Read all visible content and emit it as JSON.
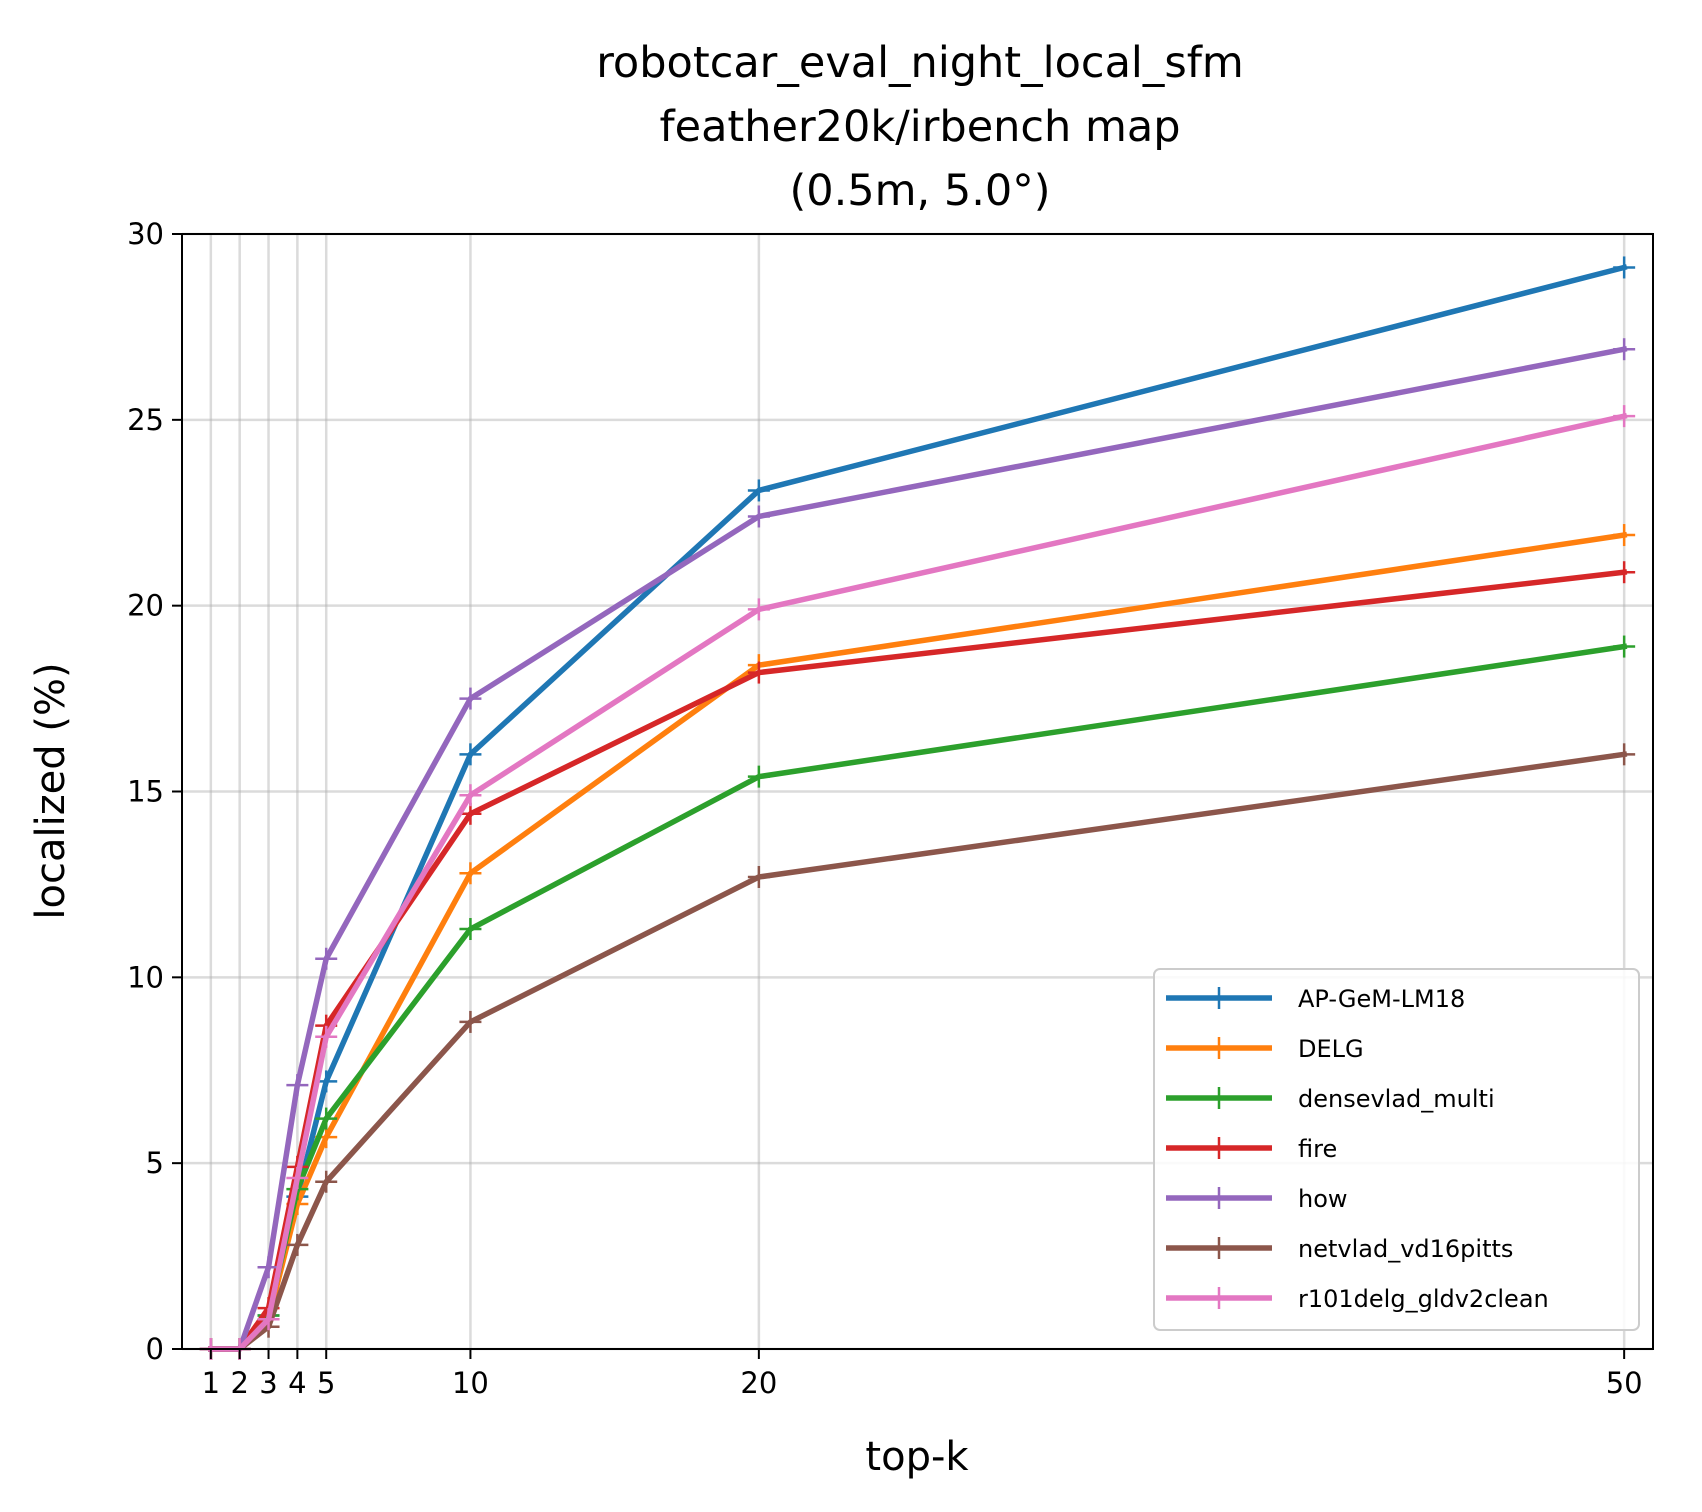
{
  "chart_data": {
    "type": "line",
    "title": [
      "robotcar_eval_night_local_sfm",
      "feather20k/irbench map",
      "(0.5m, 5.0°)"
    ],
    "xlabel": "top-k",
    "ylabel": "localized (%)",
    "x": [
      1,
      2,
      3,
      4,
      5,
      10,
      20,
      50
    ],
    "xticks": [
      "1",
      "2",
      "3",
      "4",
      "5",
      "10",
      "20",
      "50"
    ],
    "yticks": [
      "0",
      "5",
      "10",
      "15",
      "20",
      "25",
      "30"
    ],
    "xlim": [
      0,
      51
    ],
    "ylim": [
      0,
      30
    ],
    "grid": true,
    "legend_position": "lower right",
    "series": [
      {
        "name": "AP-GeM-LM18",
        "color": "#1f77b4",
        "values": [
          0,
          0,
          0.9,
          4.1,
          7.2,
          16.0,
          23.1,
          29.1
        ]
      },
      {
        "name": "DELG",
        "color": "#ff7f0e",
        "values": [
          0,
          0,
          0.8,
          3.9,
          5.7,
          12.8,
          18.4,
          21.9
        ]
      },
      {
        "name": "densevlad_multi",
        "color": "#2ca02c",
        "values": [
          0,
          0,
          0.9,
          4.3,
          6.2,
          11.3,
          15.4,
          18.9
        ]
      },
      {
        "name": "fire",
        "color": "#d62728",
        "values": [
          0,
          0,
          1.1,
          4.9,
          8.7,
          14.4,
          18.2,
          20.9
        ]
      },
      {
        "name": "how",
        "color": "#9467bd",
        "values": [
          0,
          0,
          2.2,
          7.1,
          10.5,
          17.5,
          22.4,
          26.9
        ]
      },
      {
        "name": "netvlad_vd16pitts",
        "color": "#8c564b",
        "values": [
          0,
          0,
          0.6,
          2.8,
          4.5,
          8.8,
          12.7,
          16.0
        ]
      },
      {
        "name": "r101delg_gldv2clean",
        "color": "#e377c2",
        "values": [
          0,
          0,
          0.8,
          4.6,
          8.4,
          14.9,
          19.9,
          25.1
        ]
      }
    ]
  }
}
